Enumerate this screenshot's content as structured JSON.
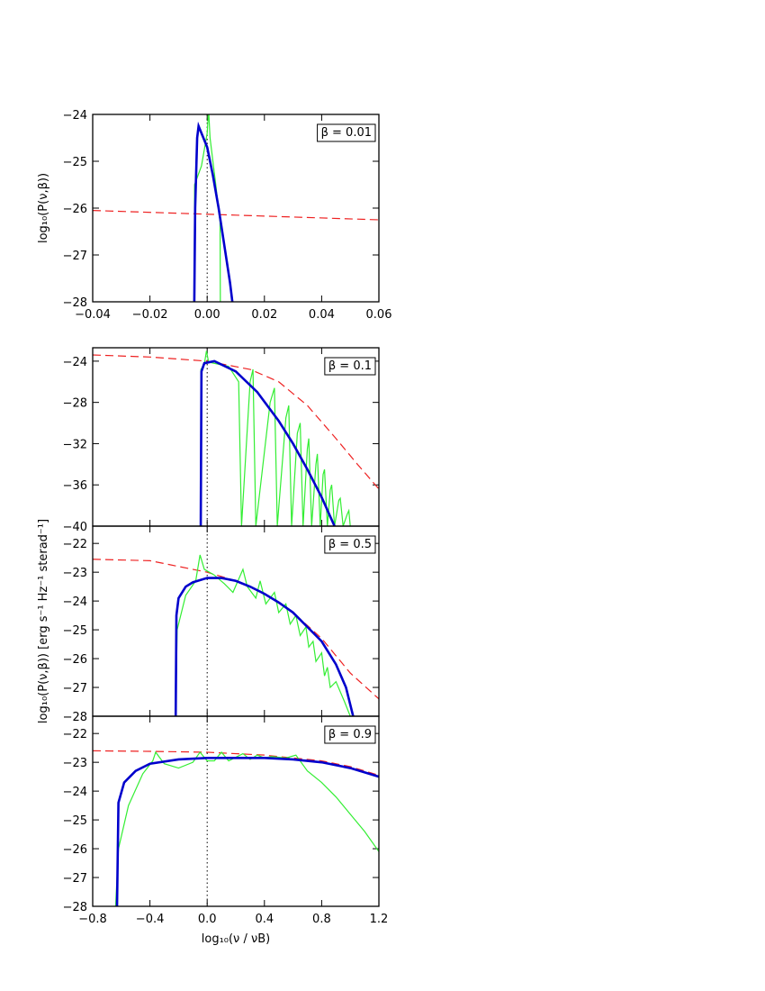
{
  "chart_data": [
    {
      "type": "line",
      "annotation": "β = 0.01",
      "ylabel": "log₁₀(P(ν,β))",
      "xlim": [
        -0.04,
        0.06
      ],
      "xticks": [
        {
          "value": -0.04,
          "label": "−0.04"
        },
        {
          "value": -0.02,
          "label": "−0.02"
        },
        {
          "value": 0,
          "label": "0.00"
        },
        {
          "value": 0.02,
          "label": "0.02"
        },
        {
          "value": 0.04,
          "label": "0.04"
        },
        {
          "value": 0.06,
          "label": "0.06"
        }
      ],
      "xtick_labels": true,
      "ylim": [
        -28,
        -24
      ],
      "yticks": [
        {
          "value": -28,
          "label": "−28"
        },
        {
          "value": -27,
          "label": "−27"
        },
        {
          "value": -26,
          "label": "−26"
        },
        {
          "value": -25,
          "label": "−25"
        },
        {
          "value": -24,
          "label": "−24"
        }
      ],
      "vline_x": 0,
      "series": [
        {
          "color": "#ee2222",
          "linestyle": "dashed",
          "width": 1.2,
          "x": [
            -0.04,
            0.01,
            0.06
          ],
          "values": [
            -26.05,
            -26.15,
            -26.25
          ]
        },
        {
          "color": "#33ee33",
          "linestyle": "solid",
          "width": 1.2,
          "x": [
            -0.0045,
            -0.0044,
            -0.002,
            0,
            0.0005,
            0.001,
            0.003,
            0.0045,
            0.0046
          ],
          "values": [
            -28,
            -25.5,
            -25.1,
            -24.4,
            -23.9,
            -24.5,
            -25.5,
            -26.3,
            -28
          ]
        },
        {
          "color": "#0000cc",
          "linestyle": "solid",
          "width": 2.6,
          "x": [
            -0.0045,
            -0.0042,
            -0.0035,
            -0.003,
            -0.002,
            0,
            0.002,
            0.004,
            0.006,
            0.008,
            0.0088
          ],
          "values": [
            -28,
            -26,
            -24.5,
            -24.25,
            -24.4,
            -24.7,
            -25.3,
            -26.0,
            -26.8,
            -27.6,
            -28
          ]
        }
      ]
    },
    {
      "type": "line",
      "annotation": "β = 0.1",
      "xlim": [
        -0.8,
        1.2
      ],
      "xticks": [
        -0.8,
        -0.4,
        0,
        0.4,
        0.8,
        1.2
      ],
      "xtick_labels": false,
      "ylim": [
        -40,
        -22.7
      ],
      "yticks": [
        {
          "value": -40,
          "label": "−40"
        },
        {
          "value": -36,
          "label": "−36"
        },
        {
          "value": -32,
          "label": "−32"
        },
        {
          "value": -28,
          "label": "−28"
        },
        {
          "value": -24,
          "label": "−24"
        }
      ],
      "vline_x": 0,
      "series": [
        {
          "color": "#ee2222",
          "linestyle": "dashed",
          "width": 1.2,
          "x": [
            -0.8,
            -0.4,
            0,
            0.3,
            0.5,
            0.7,
            0.9,
            1.05,
            1.2
          ],
          "values": [
            -23.4,
            -23.6,
            -24,
            -24.8,
            -26,
            -28.3,
            -31.5,
            -34,
            -36.4
          ]
        },
        {
          "color": "#33ee33",
          "linestyle": "solid",
          "width": 1.2,
          "x": [
            -0.045,
            -0.044,
            -0.02,
            -0.005,
            0.01,
            0.15,
            0.22,
            0.24,
            0.3,
            0.32,
            0.34,
            0.44,
            0.47,
            0.49,
            0.55,
            0.57,
            0.59,
            0.63,
            0.65,
            0.67,
            0.7,
            0.71,
            0.73,
            0.76,
            0.77,
            0.79,
            0.81,
            0.82,
            0.84,
            0.86,
            0.87,
            0.89,
            0.92,
            0.93,
            0.95,
            0.98,
            0.99,
            1.0
          ],
          "values": [
            -40,
            -24.8,
            -24.3,
            -23,
            -24.1,
            -24.5,
            -26,
            -40,
            -26,
            -24.8,
            -40,
            -28,
            -26.6,
            -40,
            -29.5,
            -28.3,
            -40,
            -31,
            -30,
            -40,
            -32.5,
            -31.5,
            -40,
            -34,
            -33,
            -40,
            -35,
            -34.5,
            -40,
            -36.5,
            -36,
            -40,
            -37.5,
            -37.3,
            -40,
            -38.8,
            -38.5,
            -40
          ]
        },
        {
          "color": "#0000cc",
          "linestyle": "solid",
          "width": 2.6,
          "x": [
            -0.045,
            -0.04,
            -0.02,
            0.05,
            0.2,
            0.35,
            0.5,
            0.6,
            0.7,
            0.8,
            0.89
          ],
          "values": [
            -40,
            -25,
            -24.2,
            -24.0,
            -25,
            -27,
            -29.8,
            -32,
            -34.5,
            -37.2,
            -40
          ]
        }
      ]
    },
    {
      "type": "line",
      "annotation": "β = 0.5",
      "ylabel": "log₁₀(P(ν,β))  [erg s⁻¹ Hz⁻¹ sterad⁻¹]",
      "xlim": [
        -0.8,
        1.2
      ],
      "xticks": [
        -0.8,
        -0.4,
        0,
        0.4,
        0.8,
        1.2
      ],
      "xtick_labels": false,
      "ylim": [
        -28,
        -21.4
      ],
      "yticks": [
        {
          "value": -28,
          "label": "−28"
        },
        {
          "value": -27,
          "label": "−27"
        },
        {
          "value": -26,
          "label": "−26"
        },
        {
          "value": -25,
          "label": "−25"
        },
        {
          "value": -24,
          "label": "−24"
        },
        {
          "value": -23,
          "label": "−23"
        },
        {
          "value": -22,
          "label": "−22"
        }
      ],
      "vline_x": 0,
      "series": [
        {
          "color": "#ee2222",
          "linestyle": "dashed",
          "width": 1.2,
          "x": [
            -0.8,
            -0.4,
            -0.2,
            0,
            0.2,
            0.4,
            0.6,
            0.8,
            1.0,
            1.2
          ],
          "values": [
            -22.55,
            -22.6,
            -22.8,
            -23.0,
            -23.3,
            -23.75,
            -24.4,
            -25.3,
            -26.5,
            -27.4
          ]
        },
        {
          "color": "#33ee33",
          "linestyle": "solid",
          "width": 1.2,
          "x": [
            -0.22,
            -0.21,
            -0.15,
            -0.08,
            -0.05,
            -0.02,
            0.05,
            0.12,
            0.18,
            0.25,
            0.28,
            0.34,
            0.37,
            0.41,
            0.47,
            0.5,
            0.55,
            0.58,
            0.62,
            0.65,
            0.69,
            0.71,
            0.74,
            0.76,
            0.8,
            0.82,
            0.84,
            0.86,
            0.9,
            0.96,
            1.0
          ],
          "values": [
            -28,
            -25,
            -23.8,
            -23.3,
            -22.4,
            -22.9,
            -23.1,
            -23.4,
            -23.7,
            -22.9,
            -23.5,
            -23.9,
            -23.3,
            -24.1,
            -23.7,
            -24.4,
            -24.1,
            -24.8,
            -24.5,
            -25.2,
            -24.9,
            -25.6,
            -25.4,
            -26.1,
            -25.8,
            -26.6,
            -26.3,
            -27,
            -26.8,
            -27.5,
            -28
          ]
        },
        {
          "color": "#0000cc",
          "linestyle": "solid",
          "width": 2.6,
          "x": [
            -0.22,
            -0.215,
            -0.2,
            -0.15,
            -0.1,
            0,
            0.1,
            0.2,
            0.3,
            0.4,
            0.5,
            0.6,
            0.7,
            0.8,
            0.9,
            0.97,
            1.02
          ],
          "values": [
            -28,
            -24.5,
            -23.9,
            -23.5,
            -23.35,
            -23.2,
            -23.2,
            -23.3,
            -23.5,
            -23.75,
            -24.05,
            -24.4,
            -24.9,
            -25.4,
            -26.2,
            -27,
            -28
          ]
        }
      ]
    },
    {
      "type": "line",
      "annotation": "β = 0.9",
      "xlabel": "log₁₀(ν / νB)",
      "xlim": [
        -0.8,
        1.2
      ],
      "xticks": [
        {
          "value": -0.8,
          "label": "−0.8"
        },
        {
          "value": -0.4,
          "label": "−0.4"
        },
        {
          "value": 0,
          "label": "0.0"
        },
        {
          "value": 0.4,
          "label": "0.4"
        },
        {
          "value": 0.8,
          "label": "0.8"
        },
        {
          "value": 1.2,
          "label": "1.2"
        }
      ],
      "xtick_labels": true,
      "ylim": [
        -28,
        -21.4
      ],
      "yticks": [
        {
          "value": -28,
          "label": "−28"
        },
        {
          "value": -27,
          "label": "−27"
        },
        {
          "value": -26,
          "label": "−26"
        },
        {
          "value": -25,
          "label": "−25"
        },
        {
          "value": -24,
          "label": "−24"
        },
        {
          "value": -23,
          "label": "−23"
        },
        {
          "value": -22,
          "label": "−22"
        }
      ],
      "vline_x": 0,
      "series": [
        {
          "color": "#ee2222",
          "linestyle": "dashed",
          "width": 1.2,
          "x": [
            -0.8,
            -0.4,
            0,
            0.4,
            0.8,
            1.0,
            1.2
          ],
          "values": [
            -22.6,
            -22.62,
            -22.65,
            -22.75,
            -22.95,
            -23.15,
            -23.45
          ]
        },
        {
          "color": "#33ee33",
          "linestyle": "solid",
          "width": 1.2,
          "x": [
            -0.64,
            -0.62,
            -0.55,
            -0.45,
            -0.38,
            -0.36,
            -0.3,
            -0.2,
            -0.1,
            -0.05,
            0,
            0.05,
            0.1,
            0.15,
            0.25,
            0.3,
            0.35,
            0.4,
            0.45,
            0.55,
            0.62,
            0.7,
            0.8,
            0.9,
            1.0,
            1.1,
            1.2
          ],
          "values": [
            -28,
            -26,
            -24.5,
            -23.4,
            -22.95,
            -22.65,
            -23.05,
            -23.2,
            -23.0,
            -22.65,
            -22.95,
            -22.95,
            -22.65,
            -22.95,
            -22.7,
            -22.9,
            -22.75,
            -22.85,
            -22.8,
            -22.85,
            -22.75,
            -23.3,
            -23.7,
            -24.2,
            -24.8,
            -25.4,
            -26.1
          ]
        },
        {
          "color": "#0000cc",
          "linestyle": "solid",
          "width": 2.6,
          "x": [
            -0.63,
            -0.62,
            -0.58,
            -0.5,
            -0.4,
            -0.2,
            0,
            0.4,
            0.6,
            0.8,
            1.0,
            1.2
          ],
          "values": [
            -28,
            -24.4,
            -23.7,
            -23.3,
            -23.05,
            -22.9,
            -22.85,
            -22.85,
            -22.9,
            -23,
            -23.2,
            -23.5
          ]
        }
      ]
    }
  ]
}
